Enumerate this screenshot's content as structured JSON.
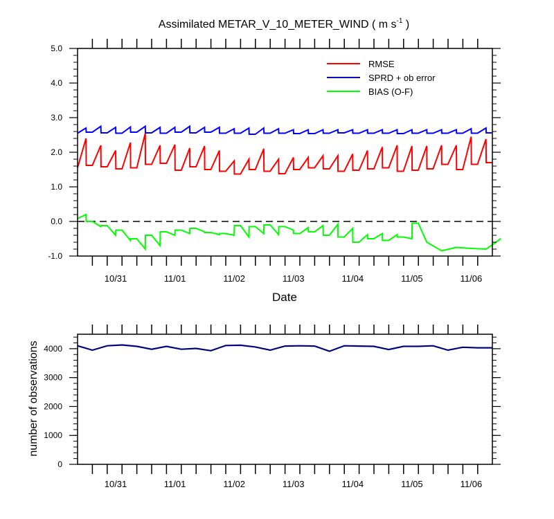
{
  "chart_data": [
    {
      "type": "line",
      "title": "Assimilated METAR_V_10_METER_WIND ( m s",
      "title_sup": "-1",
      "title_close": " )",
      "xlabel": "Date",
      "ylabel": "",
      "ylim": [
        -1.0,
        5.0
      ],
      "yticks": [
        "-1.0",
        "0.0",
        "1.0",
        "2.0",
        "3.0",
        "4.0",
        "5.0"
      ],
      "x_range": [
        -1,
        48
      ],
      "x_tick_labels": [
        "10/31",
        "11/01",
        "11/02",
        "11/03",
        "11/04",
        "11/05",
        "11/06"
      ],
      "x_tick_positions": [
        3.5,
        10.5,
        17.5,
        24.5,
        31.5,
        38.5,
        45.5
      ],
      "zero_line": true,
      "legend_placement": "top-right",
      "series": [
        {
          "name": "RMSE",
          "color": "#ff0000",
          "prior": [
            1.55,
            1.62,
            1.58,
            1.52,
            1.55,
            1.65,
            1.68,
            1.48,
            1.58,
            1.5,
            1.45,
            1.37,
            1.5,
            1.45,
            1.38,
            1.5,
            1.55,
            1.52,
            1.45,
            1.48,
            1.52,
            1.55,
            1.45,
            1.48,
            1.52,
            1.65,
            1.5,
            1.65,
            1.7
          ],
          "post": [
            2.4,
            2.2,
            2.05,
            2.28,
            2.55,
            2.2,
            2.22,
            2.12,
            2.18,
            2.05,
            1.75,
            1.8,
            2.1,
            1.8,
            1.85,
            1.85,
            1.9,
            1.9,
            1.95,
            2.05,
            2.15,
            2.2,
            2.18,
            2.18,
            2.2,
            2.2,
            2.45,
            2.38
          ]
        },
        {
          "name": "SPRD + ob error",
          "color": "#0000ff",
          "prior": [
            2.55,
            2.58,
            2.56,
            2.55,
            2.58,
            2.56,
            2.55,
            2.58,
            2.56,
            2.58,
            2.55,
            2.55,
            2.52,
            2.55,
            2.55,
            2.54,
            2.54,
            2.55,
            2.56,
            2.55,
            2.55,
            2.55,
            2.54,
            2.55,
            2.55,
            2.55,
            2.55,
            2.55,
            2.56
          ],
          "post": [
            2.7,
            2.75,
            2.72,
            2.73,
            2.75,
            2.72,
            2.72,
            2.75,
            2.72,
            2.72,
            2.68,
            2.7,
            2.7,
            2.68,
            2.65,
            2.65,
            2.65,
            2.65,
            2.65,
            2.65,
            2.65,
            2.65,
            2.65,
            2.65,
            2.65,
            2.65,
            2.68,
            2.7
          ]
        },
        {
          "name": "BIAS (O-F)",
          "color": "#00ff00",
          "prior": [
            0.08,
            0.0,
            -0.12,
            -0.25,
            -0.5,
            -0.4,
            -0.3,
            -0.25,
            -0.2,
            -0.32,
            -0.35,
            -0.12,
            -0.15,
            -0.1,
            -0.15,
            -0.35,
            -0.3,
            -0.4,
            -0.45,
            -0.6,
            -0.5,
            -0.55,
            -0.45,
            -0.05
          ],
          "post": [
            0.2,
            -0.15,
            -0.4,
            -0.55,
            -0.8,
            -0.7,
            -0.4,
            -0.35,
            -0.3,
            -0.38,
            -0.4,
            -0.45,
            -0.35,
            -0.38,
            -0.25,
            -0.18,
            -0.12,
            -0.08,
            -0.2,
            -0.38,
            -0.35,
            -0.38,
            -0.5,
            -0.6,
            -0.85,
            -0.75,
            -0.78,
            -0.8,
            -0.5
          ]
        }
      ]
    },
    {
      "type": "line",
      "title": "",
      "xlabel": "",
      "ylabel": "number of observations",
      "ylim": [
        0,
        4500
      ],
      "yticks": [
        "0",
        "1000",
        "2000",
        "3000",
        "4000"
      ],
      "x_range": [
        -1,
        48
      ],
      "x_tick_labels": [
        "10/31",
        "11/01",
        "11/02",
        "11/03",
        "11/04",
        "11/05",
        "11/06"
      ],
      "x_tick_positions": [
        3.5,
        10.5,
        17.5,
        24.5,
        31.5,
        38.5,
        45.5
      ],
      "series": [
        {
          "name": "",
          "color": "#00008b",
          "values": [
            4100,
            3950,
            4100,
            4130,
            4080,
            3980,
            4080,
            3980,
            4010,
            3930,
            4110,
            4120,
            4060,
            3950,
            4090,
            4100,
            4090,
            3910,
            4100,
            4090,
            4080,
            3970,
            4080,
            4080,
            4100,
            3950,
            4050,
            4030,
            4030
          ]
        }
      ]
    }
  ]
}
